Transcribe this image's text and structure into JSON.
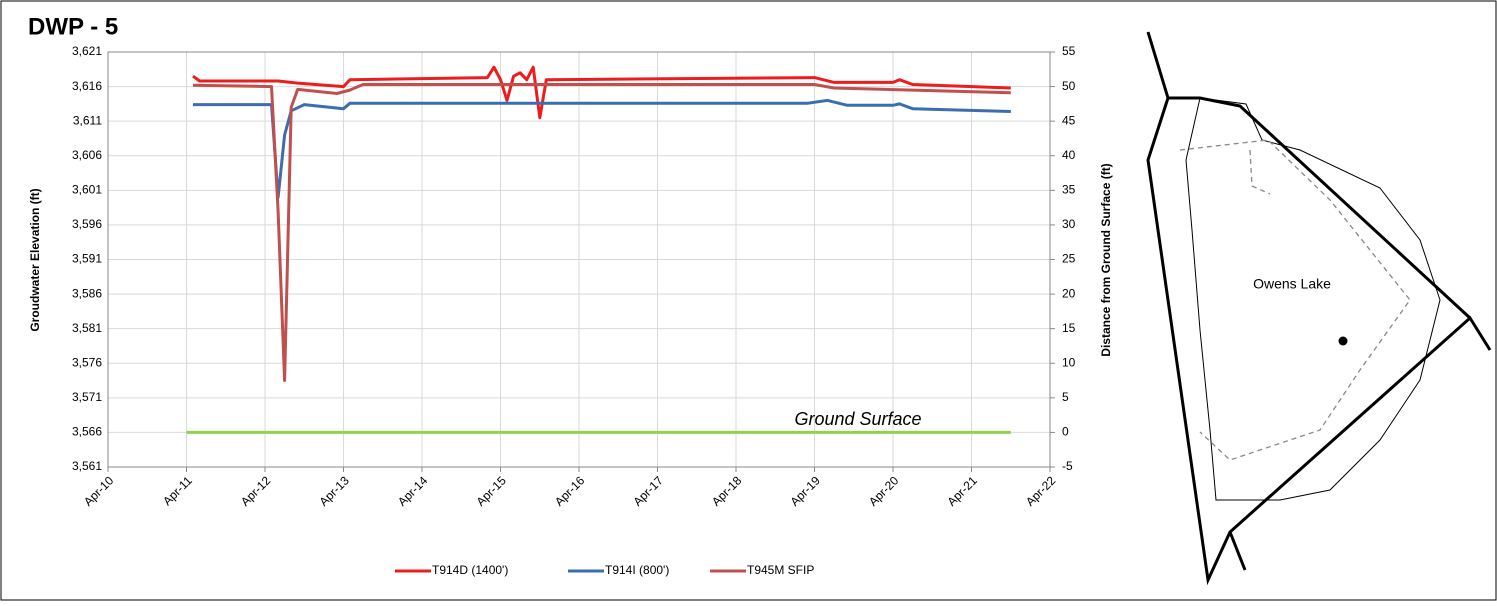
{
  "chart_data": {
    "type": "line",
    "title": "DWP - 5",
    "ylabel": "Groudwater Elevation (ft)",
    "y2label": "Distance from Ground Surface (ft)",
    "xlim": [
      "2010-04",
      "2022-04"
    ],
    "xticks": [
      {
        "value": "2010-04",
        "label": "Apr-10"
      },
      {
        "value": "2011-04",
        "label": "Apr-11"
      },
      {
        "value": "2012-04",
        "label": "Apr-12"
      },
      {
        "value": "2013-04",
        "label": "Apr-13"
      },
      {
        "value": "2014-04",
        "label": "Apr-14"
      },
      {
        "value": "2015-04",
        "label": "Apr-15"
      },
      {
        "value": "2016-04",
        "label": "Apr-16"
      },
      {
        "value": "2017-04",
        "label": "Apr-17"
      },
      {
        "value": "2018-04",
        "label": "Apr-18"
      },
      {
        "value": "2019-04",
        "label": "Apr-19"
      },
      {
        "value": "2020-04",
        "label": "Apr-20"
      },
      {
        "value": "2021-04",
        "label": "Apr-21"
      },
      {
        "value": "2022-04",
        "label": "Apr-22"
      }
    ],
    "ylim": [
      3561,
      3621
    ],
    "yticks": [
      {
        "value": 3561,
        "label": "3,561"
      },
      {
        "value": 3566,
        "label": "3,566"
      },
      {
        "value": 3571,
        "label": "3,571"
      },
      {
        "value": 3576,
        "label": "3,576"
      },
      {
        "value": 3581,
        "label": "3,581"
      },
      {
        "value": 3586,
        "label": "3,586"
      },
      {
        "value": 3591,
        "label": "3,591"
      },
      {
        "value": 3596,
        "label": "3,596"
      },
      {
        "value": 3601,
        "label": "3,601"
      },
      {
        "value": 3606,
        "label": "3,606"
      },
      {
        "value": 3611,
        "label": "3,611"
      },
      {
        "value": 3616,
        "label": "3,616"
      },
      {
        "value": 3621,
        "label": "3,621"
      }
    ],
    "y2lim": [
      -5,
      55
    ],
    "y2ticks": [
      -5,
      0,
      5,
      10,
      15,
      20,
      25,
      30,
      35,
      40,
      45,
      50,
      55
    ],
    "grid": true,
    "legend": "bottom",
    "series": [
      {
        "name": "T914D (1400')",
        "color": "#ee1c1c",
        "x": [
          "2011-05",
          "2011-06",
          "2012-06",
          "2012-09",
          "2013-04",
          "2013-05",
          "2015-02",
          "2015-03",
          "2015-04",
          "2015-05",
          "2015-06",
          "2015-07",
          "2015-08",
          "2015-09",
          "2015-10",
          "2015-11",
          "2019-04",
          "2019-07",
          "2020-04",
          "2020-05",
          "2020-07",
          "2021-10"
        ],
        "values": [
          3617.5,
          3616.8,
          3616.8,
          3616.5,
          3616.0,
          3617.0,
          3617.3,
          3618.8,
          3617.0,
          3614.0,
          3617.5,
          3618.0,
          3617.0,
          3618.8,
          3611.5,
          3617.0,
          3617.3,
          3616.6,
          3616.6,
          3617.0,
          3616.3,
          3615.8
        ]
      },
      {
        "name": "T914I (800')",
        "color": "#3b6eb0",
        "x": [
          "2011-05",
          "2012-05",
          "2012-06",
          "2012-07",
          "2012-08",
          "2012-10",
          "2013-04",
          "2013-05",
          "2019-03",
          "2019-06",
          "2019-09",
          "2020-04",
          "2020-05",
          "2020-07",
          "2021-10"
        ],
        "values": [
          3613.4,
          3613.4,
          3600.0,
          3609.0,
          3612.5,
          3613.4,
          3612.8,
          3613.6,
          3613.6,
          3614.0,
          3613.3,
          3613.3,
          3613.5,
          3612.8,
          3612.4
        ]
      },
      {
        "name": "T945M SFIP",
        "color": "#c0504d",
        "x": [
          "2011-05",
          "2012-05",
          "2012-06",
          "2012-07",
          "2012-08",
          "2012-09",
          "2013-03",
          "2013-05",
          "2013-07",
          "2019-04",
          "2019-07",
          "2021-10"
        ],
        "values": [
          3616.2,
          3616.0,
          3598.0,
          3573.5,
          3613.0,
          3615.6,
          3615.0,
          3615.5,
          3616.3,
          3616.3,
          3615.8,
          3615.1
        ]
      }
    ],
    "ground_surface": {
      "label": "Ground Surface",
      "axis": "y2",
      "color": "#92d050",
      "x": [
        "2011-04",
        "2021-10"
      ],
      "values": [
        0,
        0
      ]
    },
    "map": {
      "label": "Owens Lake"
    }
  }
}
